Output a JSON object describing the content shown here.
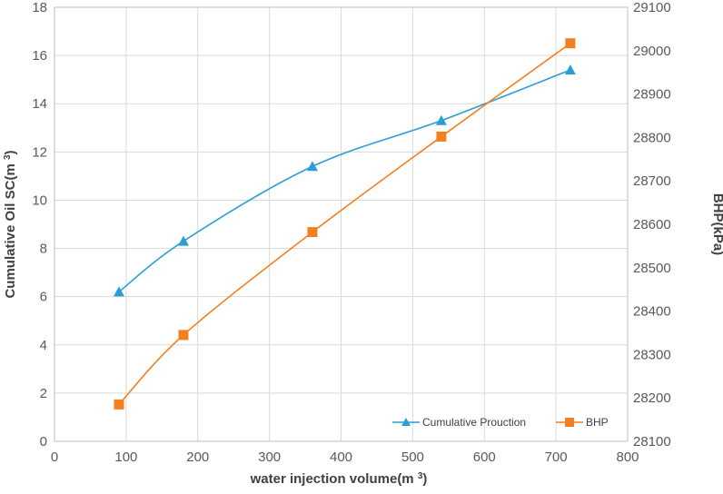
{
  "chart_data": {
    "type": "line",
    "title": "",
    "xlabel": "water injection volume(m3)",
    "ylabel_left": "Cumulative Oil SC(m3)",
    "ylabel_right": "BHP(kPa)",
    "xlim": [
      0,
      800
    ],
    "ylim_left": [
      0,
      18
    ],
    "ylim_right": [
      28100,
      29100
    ],
    "x_ticks": [
      "0",
      "100",
      "200",
      "300",
      "400",
      "500",
      "600",
      "700",
      "800"
    ],
    "y_left_ticks": [
      "0",
      "2",
      "4",
      "6",
      "8",
      "10",
      "12",
      "14",
      "16",
      "18"
    ],
    "y_right_ticks": [
      "28100",
      "28200",
      "28300",
      "28400",
      "28500",
      "28600",
      "28700",
      "28800",
      "28900",
      "29000",
      "29100"
    ],
    "grid": true,
    "legend_position": "bottom-right",
    "series": [
      {
        "name": "Cumulative Prouction",
        "axis": "left",
        "marker": "triangle",
        "color": "#2a9fd6",
        "x": [
          90,
          180,
          360,
          540,
          720
        ],
        "values": [
          6.2,
          8.3,
          11.4,
          13.3,
          15.4
        ]
      },
      {
        "name": "BHP",
        "axis": "right",
        "marker": "square",
        "color": "#f47f20",
        "x": [
          90,
          180,
          360,
          540,
          720
        ],
        "values": [
          28185,
          28345,
          28582,
          28802,
          29017
        ]
      }
    ]
  }
}
